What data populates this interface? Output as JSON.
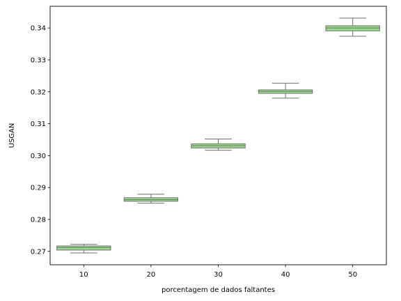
{
  "chart_data": {
    "type": "box",
    "xlabel": "porcentagem de dados faltantes",
    "ylabel": "USGAN",
    "categories": [
      "10",
      "20",
      "30",
      "40",
      "50"
    ],
    "ylim": [
      0.2658,
      0.3468
    ],
    "yticks": [
      0.27,
      0.28,
      0.29,
      0.3,
      0.31,
      0.32,
      0.33,
      0.34
    ],
    "ytick_labels": [
      "0.27",
      "0.28",
      "0.29",
      "0.30",
      "0.31",
      "0.32",
      "0.33",
      "0.34"
    ],
    "grid": false,
    "box_color": "#98df8a",
    "line_color": "#6e6e6e",
    "boxes": [
      {
        "category": "10",
        "whislo": 0.2695,
        "q1": 0.2704,
        "median": 0.2712,
        "q3": 0.2717,
        "whishi": 0.2722
      },
      {
        "category": "20",
        "whislo": 0.2851,
        "q1": 0.2857,
        "median": 0.2862,
        "q3": 0.2868,
        "whishi": 0.2879
      },
      {
        "category": "30",
        "whislo": 0.3017,
        "q1": 0.3024,
        "median": 0.3031,
        "q3": 0.3037,
        "whishi": 0.3052
      },
      {
        "category": "40",
        "whislo": 0.318,
        "q1": 0.3195,
        "median": 0.3201,
        "q3": 0.3206,
        "whishi": 0.3227
      },
      {
        "category": "50",
        "whislo": 0.3374,
        "q1": 0.3391,
        "median": 0.34,
        "q3": 0.3407,
        "whishi": 0.3431
      }
    ]
  }
}
